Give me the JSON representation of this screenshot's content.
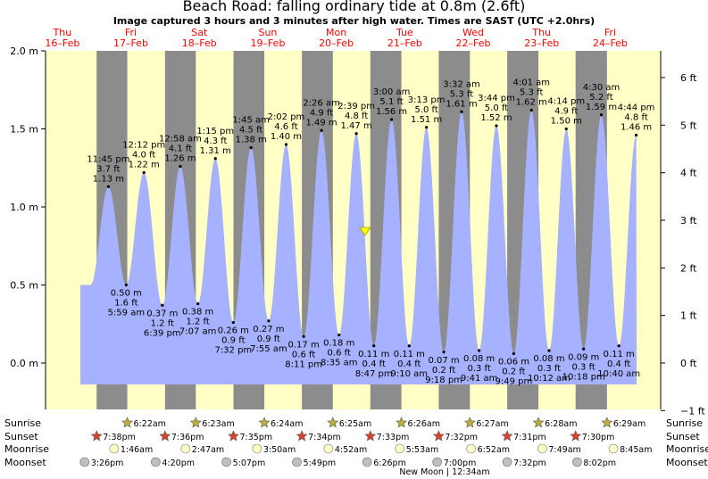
{
  "header": {
    "title": "Beach Road: falling  ordinary tide at 0.8m (2.6ft)",
    "subtitle": "Image captured 3 hours and 3 minutes after high water. Times are SAST (UTC +2.0hrs)"
  },
  "chart_data": {
    "type": "area",
    "title": "Beach Road: falling  ordinary tide at 0.8m (2.6ft)",
    "subtitle": "Image captured 3 hours and 3 minutes after high water. Times are SAST (UTC +2.0hrs)",
    "days": [
      {
        "dow": "Thu",
        "date": "16–Feb"
      },
      {
        "dow": "Fri",
        "date": "17–Feb"
      },
      {
        "dow": "Sat",
        "date": "18–Feb"
      },
      {
        "dow": "Sun",
        "date": "19–Feb"
      },
      {
        "dow": "Mon",
        "date": "20–Feb"
      },
      {
        "dow": "Tue",
        "date": "21–Feb"
      },
      {
        "dow": "Wed",
        "date": "22–Feb"
      },
      {
        "dow": "Thu",
        "date": "23–Feb"
      },
      {
        "dow": "Fri",
        "date": "24–Feb"
      }
    ],
    "y_left": {
      "range": [
        -0.3,
        2.0
      ],
      "ticks": [
        0.0,
        0.5,
        1.0,
        1.5,
        2.0
      ],
      "tick_labels": [
        "0.0 m",
        "0.5 m",
        "1.0 m",
        "1.5 m",
        "2.0 m"
      ]
    },
    "y_right": {
      "ticks": [
        -1,
        0,
        1,
        2,
        3,
        4,
        5,
        6
      ],
      "tick_labels": [
        "−1 ft",
        "0 ft",
        "1 ft",
        "2 ft",
        "3 ft",
        "4 ft",
        "5 ft",
        "6 ft"
      ]
    },
    "tides": [
      {
        "kind": "high",
        "day": 0,
        "time": "11:45 pm",
        "ft": "3.7 ft",
        "m": 1.13,
        "m_label": "1.13 m"
      },
      {
        "kind": "low",
        "day": 1,
        "time": "5:59 am",
        "ft": "1.6 ft",
        "m": 0.5,
        "m_label": "0.50 m"
      },
      {
        "kind": "high",
        "day": 1,
        "time": "12:12 pm",
        "ft": "4.0 ft",
        "m": 1.22,
        "m_label": "1.22 m"
      },
      {
        "kind": "low",
        "day": 1,
        "time": "6:39 pm",
        "ft": "1.2 ft",
        "m": 0.37,
        "m_label": "0.37 m"
      },
      {
        "kind": "high",
        "day": 2,
        "time": "12:58 am",
        "ft": "4.1 ft",
        "m": 1.26,
        "m_label": "1.26 m"
      },
      {
        "kind": "low",
        "day": 2,
        "time": "7:07 am",
        "ft": "1.2 ft",
        "m": 0.38,
        "m_label": "0.38 m"
      },
      {
        "kind": "high",
        "day": 2,
        "time": "1:15 pm",
        "ft": "4.3 ft",
        "m": 1.31,
        "m_label": "1.31 m"
      },
      {
        "kind": "low",
        "day": 2,
        "time": "7:32 pm",
        "ft": "0.9 ft",
        "m": 0.26,
        "m_label": "0.26 m"
      },
      {
        "kind": "high",
        "day": 3,
        "time": "1:45 am",
        "ft": "4.5 ft",
        "m": 1.38,
        "m_label": "1.38 m"
      },
      {
        "kind": "low",
        "day": 3,
        "time": "7:55 am",
        "ft": "0.9 ft",
        "m": 0.27,
        "m_label": "0.27 m"
      },
      {
        "kind": "high",
        "day": 3,
        "time": "2:02 pm",
        "ft": "4.6 ft",
        "m": 1.4,
        "m_label": "1.40 m"
      },
      {
        "kind": "low",
        "day": 3,
        "time": "8:11 pm",
        "ft": "0.6 ft",
        "m": 0.17,
        "m_label": "0.17 m"
      },
      {
        "kind": "high",
        "day": 4,
        "time": "2:26 am",
        "ft": "4.9 ft",
        "m": 1.49,
        "m_label": "1.49 m"
      },
      {
        "kind": "low",
        "day": 4,
        "time": "8:35 am",
        "ft": "0.6 ft",
        "m": 0.18,
        "m_label": "0.18 m"
      },
      {
        "kind": "high",
        "day": 4,
        "time": "2:39 pm",
        "ft": "4.8 ft",
        "m": 1.47,
        "m_label": "1.47 m"
      },
      {
        "kind": "low",
        "day": 4,
        "time": "8:47 pm",
        "ft": "0.4 ft",
        "m": 0.11,
        "m_label": "0.11 m"
      },
      {
        "kind": "high",
        "day": 5,
        "time": "3:00 am",
        "ft": "5.1 ft",
        "m": 1.56,
        "m_label": "1.56 m"
      },
      {
        "kind": "low",
        "day": 5,
        "time": "9:10 am",
        "ft": "0.4 ft",
        "m": 0.11,
        "m_label": "0.11 m"
      },
      {
        "kind": "high",
        "day": 5,
        "time": "3:13 pm",
        "ft": "5.0 ft",
        "m": 1.51,
        "m_label": "1.51 m"
      },
      {
        "kind": "low",
        "day": 5,
        "time": "9:18 pm",
        "ft": "0.2 ft",
        "m": 0.07,
        "m_label": "0.07 m"
      },
      {
        "kind": "high",
        "day": 6,
        "time": "3:32 am",
        "ft": "5.3 ft",
        "m": 1.61,
        "m_label": "1.61 m"
      },
      {
        "kind": "low",
        "day": 6,
        "time": "9:41 am",
        "ft": "0.3 ft",
        "m": 0.08,
        "m_label": "0.08 m"
      },
      {
        "kind": "high",
        "day": 6,
        "time": "3:44 pm",
        "ft": "5.0 ft",
        "m": 1.52,
        "m_label": "1.52 m"
      },
      {
        "kind": "low",
        "day": 6,
        "time": "9:49 pm",
        "ft": "0.2 ft",
        "m": 0.06,
        "m_label": "0.06 m"
      },
      {
        "kind": "high",
        "day": 7,
        "time": "4:01 am",
        "ft": "5.3 ft",
        "m": 1.62,
        "m_label": "1.62 m"
      },
      {
        "kind": "low",
        "day": 7,
        "time": "10:12 am",
        "ft": "0.3 ft",
        "m": 0.08,
        "m_label": "0.08 m"
      },
      {
        "kind": "high",
        "day": 7,
        "time": "4:14 pm",
        "ft": "4.9 ft",
        "m": 1.5,
        "m_label": "1.50 m"
      },
      {
        "kind": "low",
        "day": 7,
        "time": "10:18 pm",
        "ft": "0.3 ft",
        "m": 0.09,
        "m_label": "0.09 m"
      },
      {
        "kind": "high",
        "day": 8,
        "time": "4:30 am",
        "ft": "5.2 ft",
        "m": 1.59,
        "m_label": "1.59 m"
      },
      {
        "kind": "low",
        "day": 8,
        "time": "10:40 am",
        "ft": "0.4 ft",
        "m": 0.11,
        "m_label": "0.11 m"
      },
      {
        "kind": "high",
        "day": 8,
        "time": "4:44 pm",
        "ft": "4.8 ft",
        "m": 1.46,
        "m_label": "1.46 m"
      }
    ],
    "current_marker": {
      "day": 4,
      "time": "5:42 pm",
      "m": 0.8
    },
    "astronomy": {
      "labels": {
        "sunrise": "Sunrise",
        "sunset": "Sunset",
        "moonrise": "Moonrise",
        "moonset": "Moonset"
      },
      "sunrise": [
        {
          "day": 1,
          "time": "6:22am"
        },
        {
          "day": 2,
          "time": "6:23am"
        },
        {
          "day": 3,
          "time": "6:24am"
        },
        {
          "day": 4,
          "time": "6:25am"
        },
        {
          "day": 5,
          "time": "6:26am"
        },
        {
          "day": 6,
          "time": "6:27am"
        },
        {
          "day": 7,
          "time": "6:28am"
        },
        {
          "day": 8,
          "time": "6:29am"
        }
      ],
      "sunset": [
        {
          "day": 0,
          "time": "7:38pm"
        },
        {
          "day": 1,
          "time": "7:36pm"
        },
        {
          "day": 2,
          "time": "7:35pm"
        },
        {
          "day": 3,
          "time": "7:34pm"
        },
        {
          "day": 4,
          "time": "7:33pm"
        },
        {
          "day": 5,
          "time": "7:32pm"
        },
        {
          "day": 6,
          "time": "7:31pm"
        },
        {
          "day": 7,
          "time": "7:30pm"
        }
      ],
      "moonrise": [
        {
          "day": 1,
          "time": "1:46am"
        },
        {
          "day": 2,
          "time": "2:47am"
        },
        {
          "day": 3,
          "time": "3:50am"
        },
        {
          "day": 4,
          "time": "4:52am"
        },
        {
          "day": 5,
          "time": "5:53am"
        },
        {
          "day": 6,
          "time": "6:52am"
        },
        {
          "day": 7,
          "time": "7:49am"
        },
        {
          "day": 8,
          "time": "8:45am"
        }
      ],
      "moonset": [
        {
          "day": 0,
          "time": "3:26pm"
        },
        {
          "day": 1,
          "time": "4:20pm"
        },
        {
          "day": 2,
          "time": "5:07pm"
        },
        {
          "day": 3,
          "time": "5:49pm"
        },
        {
          "day": 4,
          "time": "6:26pm"
        },
        {
          "day": 5,
          "time": "7:00pm"
        },
        {
          "day": 6,
          "time": "7:32pm"
        },
        {
          "day": 7,
          "time": "8:02pm"
        }
      ],
      "note": "New Moon | 12:34am"
    },
    "colors": {
      "day": "#ffffc6",
      "night": "#8c8c8c",
      "tide": "#a6b2ff",
      "day_label": "#ff0000",
      "marker": "#ffff00",
      "sunrise_star": "#bfae3a",
      "sunset_star": "#d9432b",
      "moon": "#ffffc6",
      "moonset_disc": "#bfbfbf"
    }
  }
}
